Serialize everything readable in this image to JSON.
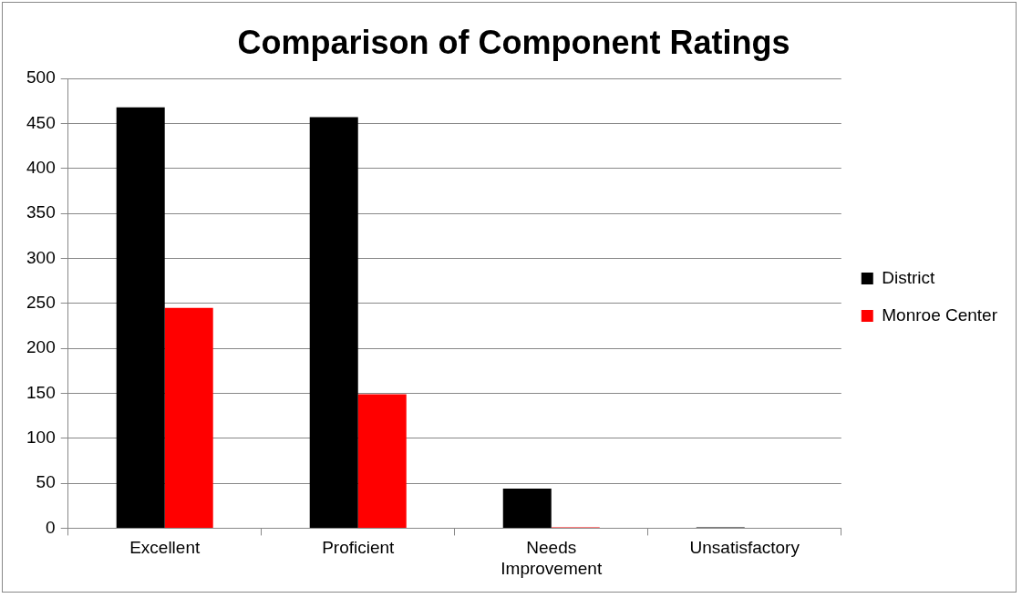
{
  "chart_data": {
    "type": "bar",
    "title": "Comparison of Component Ratings",
    "categories": [
      "Excellent",
      "Proficient",
      "Needs Improvement",
      "Unsatisfactory"
    ],
    "series": [
      {
        "name": "District",
        "color": "#000000",
        "values": [
          468,
          457,
          44,
          1
        ]
      },
      {
        "name": "Monroe Center",
        "color": "#ff0000",
        "values": [
          245,
          149,
          1,
          0
        ]
      }
    ],
    "ylim": [
      0,
      500
    ],
    "yticks": [
      0,
      50,
      100,
      150,
      200,
      250,
      300,
      350,
      400,
      450,
      500
    ],
    "grid": "y",
    "legend": "right"
  }
}
